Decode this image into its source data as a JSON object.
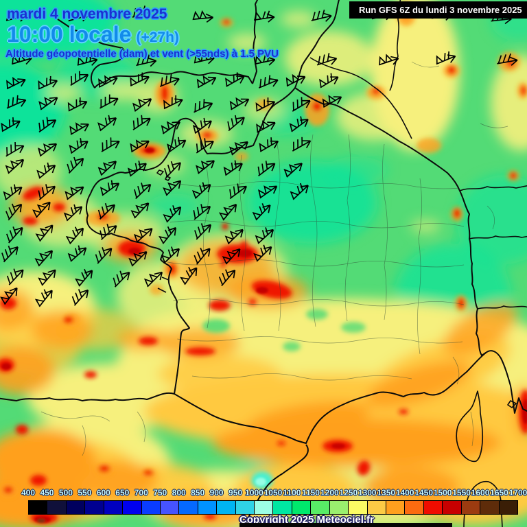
{
  "header": {
    "date_line": "mardi 4 novembre 2025",
    "time_line": "10:00 locale",
    "time_offset": "(+27h)",
    "subtitle": "Altitude géopotentielle (dam) et vent (>55nds) à 1.5 PVU"
  },
  "run_box": {
    "label": "Run GFS 6Z du lundi 3 novembre 2025"
  },
  "footer": {
    "copyright": "Copyright 2025 Meteociel.fr"
  },
  "legend": {
    "unit_values": [
      "400",
      "450",
      "500",
      "550",
      "600",
      "650",
      "700",
      "750",
      "800",
      "850",
      "900",
      "950",
      "1000",
      "1050",
      "1100",
      "1150",
      "1200",
      "1250",
      "1300",
      "1350",
      "1400",
      "1450",
      "1500",
      "1550",
      "1600",
      "1650",
      "1700"
    ],
    "colors": [
      "#000000",
      "#10103A",
      "#00005E",
      "#000090",
      "#0000C0",
      "#0000EE",
      "#0A3CFF",
      "#4653FF",
      "#0569FF",
      "#0092FF",
      "#00B4F2",
      "#2FD3E6",
      "#9CFFE6",
      "#00E8A2",
      "#00E96C",
      "#58EC66",
      "#9AEF6E",
      "#FBFB64",
      "#FCCB45",
      "#FFA01E",
      "#FB6B10",
      "#F00C00",
      "#C80000",
      "#9C3B10",
      "#5E2C0A",
      "#3A1E06"
    ]
  },
  "colors": {
    "base_green": "#53DB76",
    "spring_green": "#0FE39A",
    "pale_yellow": "#F6F07D",
    "gold": "#FFC93F",
    "orange": "#FFA01E",
    "red": "#EF1400",
    "dark_red": "#C40000",
    "brown": "#7C330E",
    "cyan": "#49EFD0",
    "pale_cyan": "#9FFFE8",
    "coast": "#0B0B0B",
    "dept_line": "#2E4433",
    "barb": "#000000",
    "title_fill": "#1B2FD4",
    "title_glow": "#2FA8F0",
    "time_fill": "#128BEA",
    "time_glow": "#5FD2FF",
    "legend_label": "#CFFFFF",
    "legend_label_glow": "#001040",
    "run_bg": "#000000",
    "run_fg": "#FFFFFF",
    "copyright_fill": "#FFFFFF",
    "copyright_glow": "#222266",
    "strip_black": "#050505"
  }
}
